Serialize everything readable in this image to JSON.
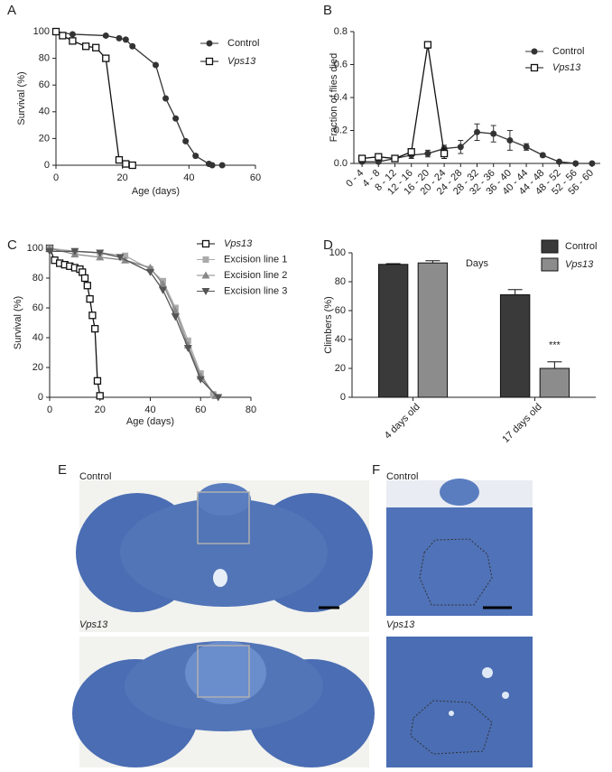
{
  "chart_data": [
    {
      "type": "line",
      "panel": "A",
      "xlabel": "Age (days)",
      "ylabel": "Survival (%)",
      "xlim": [
        0,
        60
      ],
      "xticks": [
        0,
        20,
        40,
        60
      ],
      "ylim": [
        0,
        100
      ],
      "yticks": [
        0,
        20,
        40,
        60,
        80,
        100
      ],
      "series": [
        {
          "name": "Control",
          "color": "#333333",
          "marker": "circle",
          "x": [
            0,
            5,
            15,
            19,
            21,
            23,
            30,
            33,
            36,
            39,
            42,
            46,
            47,
            50
          ],
          "values": [
            100,
            98,
            97,
            95,
            94,
            89,
            75,
            50,
            35,
            18,
            7,
            1,
            0,
            0
          ]
        },
        {
          "name": "Vps13",
          "italic": true,
          "color": "#111111",
          "marker": "square-open",
          "x": [
            0,
            2,
            5,
            9,
            12,
            15,
            19,
            21,
            23
          ],
          "values": [
            100,
            97,
            93,
            89,
            88,
            80,
            4,
            1,
            0
          ]
        }
      ]
    },
    {
      "type": "line",
      "panel": "B",
      "xlabel": "Days",
      "ylabel": "Fraction of flies died",
      "categories": [
        "0 - 4",
        "4 - 8",
        "8 - 12",
        "12 - 16",
        "16 - 20",
        "20 - 24",
        "24 - 28",
        "28 - 32",
        "32 - 36",
        "36 - 40",
        "40 - 44",
        "44 - 48",
        "48 - 52",
        "52 - 56",
        "56 - 60"
      ],
      "ylim": [
        0,
        0.8
      ],
      "yticks": [
        {
          "value": 0,
          "label": "0.0"
        },
        0.2,
        0.4,
        0.6,
        0.8
      ],
      "series": [
        {
          "name": "Control",
          "color": "#333333",
          "marker": "circle",
          "values": [
            0.01,
            0.01,
            0.03,
            0.05,
            0.06,
            0.09,
            0.1,
            0.19,
            0.18,
            0.14,
            0.1,
            0.05,
            0.01,
            0,
            0
          ],
          "errors": [
            0.01,
            0.01,
            0.01,
            0.02,
            0.02,
            0.02,
            0.04,
            0.05,
            0.05,
            0.06,
            0.02,
            0.01,
            0,
            0,
            0
          ]
        },
        {
          "name": "Vps13",
          "italic": true,
          "color": "#111111",
          "marker": "square-open",
          "values": [
            0.03,
            0.04,
            0.03,
            0.07,
            0.72,
            0.06,
            null,
            null,
            null,
            null,
            null,
            null,
            null,
            null,
            null
          ],
          "errors": [
            0.01,
            0.01,
            0.01,
            0.02,
            0.02,
            0.03,
            null,
            null,
            null,
            null,
            null,
            null,
            null,
            null,
            null
          ]
        }
      ]
    },
    {
      "type": "line",
      "panel": "C",
      "xlabel": "Age (days)",
      "ylabel": "Survival (%)",
      "xlim": [
        0,
        80
      ],
      "xticks": [
        0,
        20,
        40,
        60,
        80
      ],
      "ylim": [
        0,
        100
      ],
      "yticks": [
        0,
        20,
        40,
        60,
        80,
        100
      ],
      "series": [
        {
          "name": "Vps13",
          "italic": true,
          "color": "#111111",
          "marker": "square-open",
          "x": [
            0,
            2,
            4,
            6,
            8,
            10,
            12,
            13,
            14,
            15,
            16,
            17,
            18,
            19,
            20
          ],
          "values": [
            100,
            92,
            90,
            89,
            88,
            87,
            86,
            84,
            80,
            75,
            66,
            55,
            46,
            11,
            1
          ]
        },
        {
          "name": "Excision line 1",
          "color": "#aaaaaa",
          "marker": "square",
          "x": [
            0,
            10,
            20,
            30,
            40,
            45,
            50,
            55,
            60,
            65
          ],
          "values": [
            100,
            98,
            97,
            95,
            86,
            78,
            60,
            38,
            16,
            2
          ]
        },
        {
          "name": "Excision line 2",
          "color": "#888888",
          "marker": "triangle",
          "x": [
            0,
            10,
            20,
            30,
            40,
            45,
            50,
            55,
            60,
            66
          ],
          "values": [
            100,
            96,
            94,
            92,
            87,
            76,
            58,
            35,
            14,
            1
          ]
        },
        {
          "name": "Excision line 3",
          "color": "#555555",
          "marker": "triangle-down",
          "x": [
            0,
            10,
            20,
            28,
            40,
            45,
            50,
            55,
            60,
            67
          ],
          "values": [
            98,
            98,
            97,
            94,
            84,
            72,
            54,
            33,
            12,
            0
          ]
        }
      ]
    },
    {
      "type": "bar",
      "panel": "D",
      "ylabel": "Climbers (%)",
      "categories": [
        "4 days old",
        "17 days old"
      ],
      "ylim": [
        0,
        100
      ],
      "yticks": [
        0,
        20,
        40,
        60,
        80,
        100
      ],
      "annotation": "***",
      "series": [
        {
          "name": "Control",
          "color": "#3a3a3a",
          "values": [
            92,
            71
          ],
          "errors": [
            0.5,
            3.5
          ]
        },
        {
          "name": "Vps13",
          "italic": true,
          "color": "#8c8c8c",
          "values": [
            93,
            20
          ],
          "errors": [
            1.5,
            4.5
          ]
        }
      ]
    }
  ],
  "image_panels": [
    {
      "panel": "E",
      "labels": [
        "Control",
        "Vps13"
      ]
    },
    {
      "panel": "F",
      "labels": [
        "Control",
        "Vps13"
      ]
    }
  ]
}
